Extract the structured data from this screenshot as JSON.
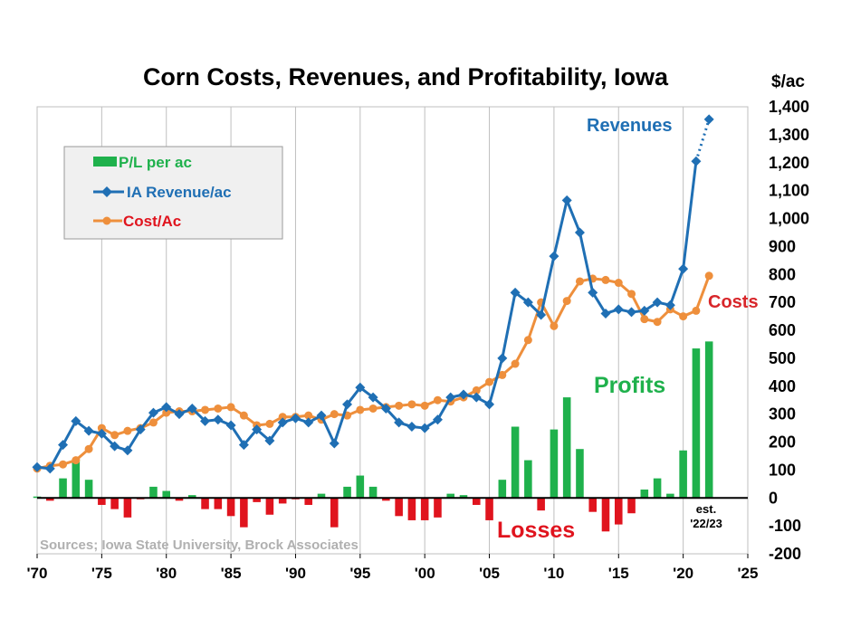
{
  "chart_data": {
    "type": "bar",
    "title": "Corn Costs, Revenues, and Profitability, Iowa",
    "unit_label": "$/ac",
    "ylim": [
      -200,
      1400
    ],
    "yticks": [
      -200,
      -100,
      0,
      100,
      200,
      300,
      400,
      500,
      600,
      700,
      800,
      900,
      1000,
      1100,
      1200,
      1300,
      1400
    ],
    "ytick_labels": [
      "-200",
      "-100",
      "0",
      "100",
      "200",
      "300",
      "400",
      "500",
      "600",
      "700",
      "800",
      "900",
      "1,000",
      "1,100",
      "1,200",
      "1,300",
      "1,400"
    ],
    "xlim": [
      1970,
      2025
    ],
    "xticks": [
      1970,
      1975,
      1980,
      1985,
      1990,
      1995,
      2000,
      2005,
      2010,
      2015,
      2020,
      2025
    ],
    "xtick_labels": [
      "'70",
      "'75",
      "'80",
      "'85",
      "'90",
      "'95",
      "'00",
      "'05",
      "'10",
      "'15",
      "'20",
      "'25"
    ],
    "grid": "vertical",
    "legend_position": "top-left",
    "colors": {
      "profit": "#1fb14c",
      "loss": "#e0141e",
      "revenue": "#1f6fb4",
      "cost": "#ee8f3c",
      "costs_label": "#d8262a",
      "grid": "#bfbfbf",
      "legend_bg": "#f0f0f0"
    },
    "series": [
      {
        "name": "P/L per ac",
        "kind": "bar",
        "x": [
          1970,
          1971,
          1972,
          1973,
          1974,
          1975,
          1976,
          1977,
          1978,
          1979,
          1980,
          1981,
          1982,
          1983,
          1984,
          1985,
          1986,
          1987,
          1988,
          1989,
          1990,
          1991,
          1992,
          1993,
          1994,
          1995,
          1996,
          1997,
          1998,
          1999,
          2000,
          2001,
          2002,
          2003,
          2004,
          2005,
          2006,
          2007,
          2008,
          2009,
          2010,
          2011,
          2012,
          2013,
          2014,
          2015,
          2016,
          2017,
          2018,
          2019,
          2020,
          2021,
          2022
        ],
        "values": [
          5,
          -10,
          70,
          140,
          65,
          -25,
          -40,
          -70,
          -5,
          40,
          25,
          -10,
          10,
          -40,
          -40,
          -65,
          -105,
          -15,
          -60,
          -20,
          -5,
          -25,
          15,
          -105,
          40,
          80,
          40,
          -10,
          -65,
          -80,
          -80,
          -70,
          15,
          10,
          -25,
          -80,
          65,
          255,
          135,
          -45,
          245,
          360,
          175,
          -50,
          -120,
          -95,
          -55,
          30,
          70,
          15,
          170,
          535,
          560
        ]
      },
      {
        "name": "IA Revenue/ac",
        "kind": "line",
        "marker": "diamond",
        "x": [
          1970,
          1971,
          1972,
          1973,
          1974,
          1975,
          1976,
          1977,
          1978,
          1979,
          1980,
          1981,
          1982,
          1983,
          1984,
          1985,
          1986,
          1987,
          1988,
          1989,
          1990,
          1991,
          1992,
          1993,
          1994,
          1995,
          1996,
          1997,
          1998,
          1999,
          2000,
          2001,
          2002,
          2003,
          2004,
          2005,
          2006,
          2007,
          2008,
          2009,
          2010,
          2011,
          2012,
          2013,
          2014,
          2015,
          2016,
          2017,
          2018,
          2019,
          2020,
          2021,
          2022
        ],
        "values": [
          110,
          105,
          190,
          275,
          240,
          230,
          185,
          170,
          245,
          305,
          325,
          300,
          320,
          275,
          280,
          260,
          190,
          245,
          205,
          270,
          285,
          270,
          295,
          195,
          335,
          395,
          360,
          320,
          270,
          255,
          250,
          280,
          360,
          370,
          360,
          335,
          500,
          735,
          700,
          655,
          865,
          1065,
          950,
          735,
          660,
          675,
          665,
          670,
          700,
          690,
          820,
          1205,
          1355
        ],
        "estimated_from": 2021
      },
      {
        "name": "Cost/Ac",
        "kind": "line",
        "marker": "circle",
        "x": [
          1970,
          1971,
          1972,
          1973,
          1974,
          1975,
          1976,
          1977,
          1978,
          1979,
          1980,
          1981,
          1982,
          1983,
          1984,
          1985,
          1986,
          1987,
          1988,
          1989,
          1990,
          1991,
          1992,
          1993,
          1994,
          1995,
          1996,
          1997,
          1998,
          1999,
          2000,
          2001,
          2002,
          2003,
          2004,
          2005,
          2006,
          2007,
          2008,
          2009,
          2010,
          2011,
          2012,
          2013,
          2014,
          2015,
          2016,
          2017,
          2018,
          2019,
          2020,
          2021,
          2022
        ],
        "values": [
          105,
          115,
          120,
          135,
          175,
          250,
          225,
          240,
          250,
          270,
          305,
          310,
          310,
          315,
          320,
          325,
          295,
          260,
          265,
          290,
          290,
          295,
          280,
          300,
          295,
          315,
          320,
          325,
          330,
          335,
          330,
          350,
          345,
          360,
          385,
          415,
          440,
          480,
          565,
          700,
          615,
          705,
          775,
          785,
          780,
          770,
          730,
          640,
          630,
          675,
          650,
          670,
          795
        ]
      }
    ],
    "annotations": {
      "revenues": "Revenues",
      "costs": "Costs",
      "profits": "Profits",
      "losses": "Losses",
      "est_line1": "est.",
      "est_line2": "'22/23"
    },
    "source": "Sources; Iowa State University, Brock Associates"
  }
}
